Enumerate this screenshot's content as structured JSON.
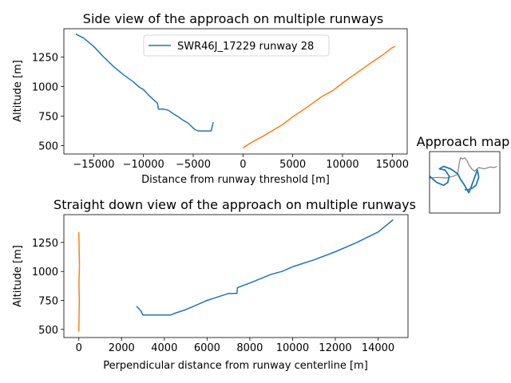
{
  "chart_data": [
    {
      "type": "line",
      "title": "Side view of the approach on multiple runways",
      "xlabel": "Distance from runway threshold [m]",
      "ylabel": "Altitude [m]",
      "xlim": [
        -18000,
        16500
      ],
      "ylim": [
        430,
        1490
      ],
      "xticks": [
        -15000,
        -10000,
        -5000,
        0,
        5000,
        10000,
        15000
      ],
      "xtick_labels": [
        "−15000",
        "−10000",
        "−5000",
        "0",
        "5000",
        "10000",
        "15000"
      ],
      "yticks": [
        500,
        750,
        1000,
        1250
      ],
      "ytick_labels": [
        "500",
        "750",
        "1000",
        "1250"
      ],
      "grid": false,
      "legend": {
        "position": "top-center",
        "entries": [
          "SWR46J_17229 runway 28"
        ]
      },
      "series": [
        {
          "name": "SWR46J_17229 runway 28",
          "color": "#1f77b4",
          "x": [
            -16800,
            -16000,
            -15000,
            -14000,
            -13000,
            -12000,
            -11000,
            -10500,
            -10000,
            -9500,
            -9000,
            -8600,
            -8500,
            -8000,
            -7500,
            -7000,
            -6500,
            -6000,
            -5500,
            -5000,
            -4800,
            -4500,
            -4000,
            -3500,
            -3200,
            -3100,
            -3000
          ],
          "y": [
            1445,
            1410,
            1340,
            1250,
            1170,
            1100,
            1040,
            1000,
            975,
            930,
            890,
            860,
            810,
            810,
            800,
            770,
            745,
            715,
            690,
            650,
            635,
            625,
            625,
            625,
            625,
            660,
            700
          ]
        },
        {
          "name": "",
          "color": "#ff7f0e",
          "x": [
            0,
            500,
            1000,
            2000,
            3000,
            4000,
            5000,
            6000,
            7000,
            8000,
            9000,
            10000,
            11000,
            12000,
            13000,
            14000,
            15000,
            15300
          ],
          "y": [
            480,
            510,
            535,
            580,
            630,
            680,
            745,
            800,
            860,
            920,
            965,
            1030,
            1090,
            1150,
            1210,
            1265,
            1330,
            1340
          ]
        }
      ]
    },
    {
      "type": "line",
      "title": "Straight down view of the approach on multiple runways",
      "xlabel": "Perpendicular distance from runway centerline [m]",
      "ylabel": "Altitude [m]",
      "xlim": [
        -700,
        15400
      ],
      "ylim": [
        430,
        1490
      ],
      "xticks": [
        0,
        2000,
        4000,
        6000,
        8000,
        10000,
        12000,
        14000
      ],
      "xtick_labels": [
        "0",
        "2000",
        "4000",
        "6000",
        "8000",
        "10000",
        "12000",
        "14000"
      ],
      "yticks": [
        500,
        750,
        1000,
        1250
      ],
      "ytick_labels": [
        "500",
        "750",
        "1000",
        "1250"
      ],
      "grid": false,
      "series": [
        {
          "name": "",
          "color": "#1f77b4",
          "x": [
            2700,
            2900,
            3000,
            3500,
            4000,
            4300,
            4500,
            5000,
            5500,
            6000,
            6500,
            7000,
            7400,
            7420,
            8000,
            9000,
            9500,
            10000,
            11000,
            12000,
            13000,
            14000,
            14700
          ],
          "y": [
            700,
            660,
            625,
            625,
            625,
            625,
            640,
            670,
            710,
            750,
            780,
            810,
            810,
            860,
            900,
            975,
            1000,
            1040,
            1100,
            1170,
            1250,
            1340,
            1445
          ]
        },
        {
          "name": "",
          "color": "#ff7f0e",
          "x": [
            0,
            10,
            20,
            5,
            30,
            15,
            0
          ],
          "y": [
            480,
            600,
            750,
            900,
            1050,
            1200,
            1340
          ]
        }
      ]
    },
    {
      "type": "line",
      "title": "Approach map",
      "grid": false,
      "series": [
        {
          "name": "",
          "color": "#808080",
          "x": [
            0.0,
            0.12,
            0.24,
            0.34,
            0.4,
            0.42,
            0.44,
            0.47,
            0.5,
            0.53,
            0.56,
            0.6,
            0.64,
            0.7,
            0.78,
            0.86,
            0.92,
            0.96
          ],
          "y": [
            0.57,
            0.58,
            0.57,
            0.6,
            0.63,
            0.8,
            0.9,
            0.88,
            0.9,
            0.86,
            0.78,
            0.72,
            0.68,
            0.74,
            0.72,
            0.75,
            0.74,
            0.76
          ]
        },
        {
          "name": "",
          "color": "#1f77b4",
          "x": [
            0.0,
            0.1,
            0.2,
            0.26,
            0.28,
            0.22,
            0.14,
            0.2,
            0.3,
            0.4,
            0.44,
            0.5,
            0.52,
            0.56,
            0.6,
            0.68,
            0.7,
            0.66,
            0.6,
            0.55,
            0.5
          ],
          "y": [
            0.6,
            0.5,
            0.45,
            0.5,
            0.6,
            0.7,
            0.72,
            0.76,
            0.72,
            0.64,
            0.55,
            0.45,
            0.4,
            0.33,
            0.45,
            0.7,
            0.58,
            0.45,
            0.4,
            0.38,
            0.38
          ]
        }
      ]
    }
  ]
}
